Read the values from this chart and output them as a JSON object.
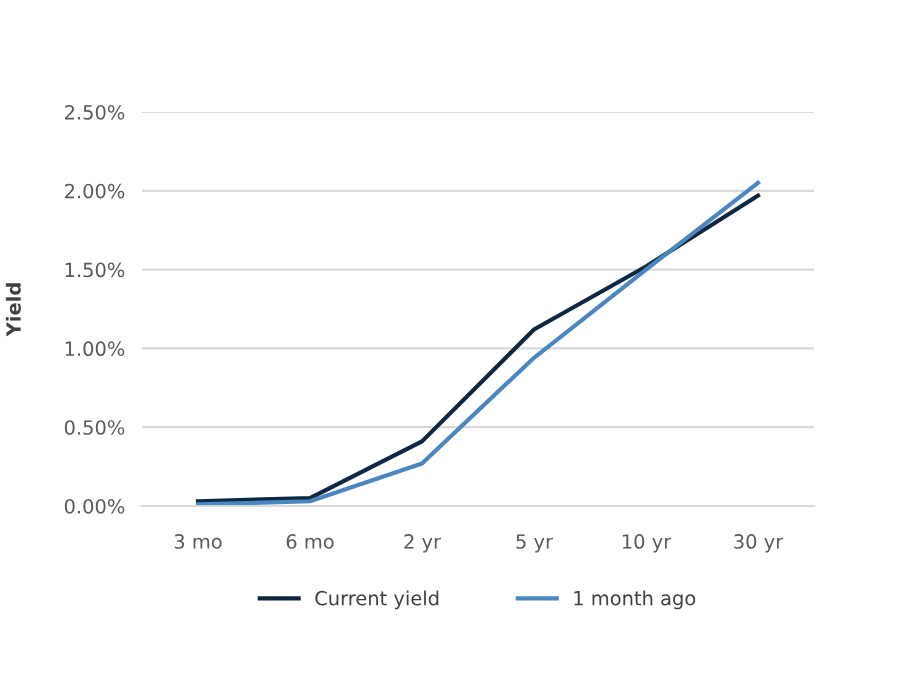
{
  "chart_data": {
    "type": "line",
    "ylabel": "Yield",
    "categories": [
      "3 mo",
      "6 mo",
      "2 yr",
      "5 yr",
      "10 yr",
      "30 yr"
    ],
    "series": [
      {
        "name": "Current yield",
        "color": "#0e2841",
        "values": [
          0.03,
          0.05,
          0.41,
          1.12,
          1.52,
          1.97
        ]
      },
      {
        "name": "1 month ago",
        "color": "#4a86c0",
        "values": [
          0.01,
          0.03,
          0.27,
          0.94,
          1.5,
          2.05
        ]
      }
    ],
    "ylim": [
      0,
      2.5
    ],
    "yticks": [
      {
        "value": 0,
        "label": "0.00%"
      },
      {
        "value": 0.5,
        "label": "0.50%"
      },
      {
        "value": 1.0,
        "label": "1.00%"
      },
      {
        "value": 1.5,
        "label": "1.50%"
      },
      {
        "value": 2.0,
        "label": "2.00%"
      },
      {
        "value": 2.5,
        "label": "2.50%"
      }
    ],
    "grid": "y",
    "legend": "bottom",
    "marker": "none",
    "line_style": "solid"
  }
}
